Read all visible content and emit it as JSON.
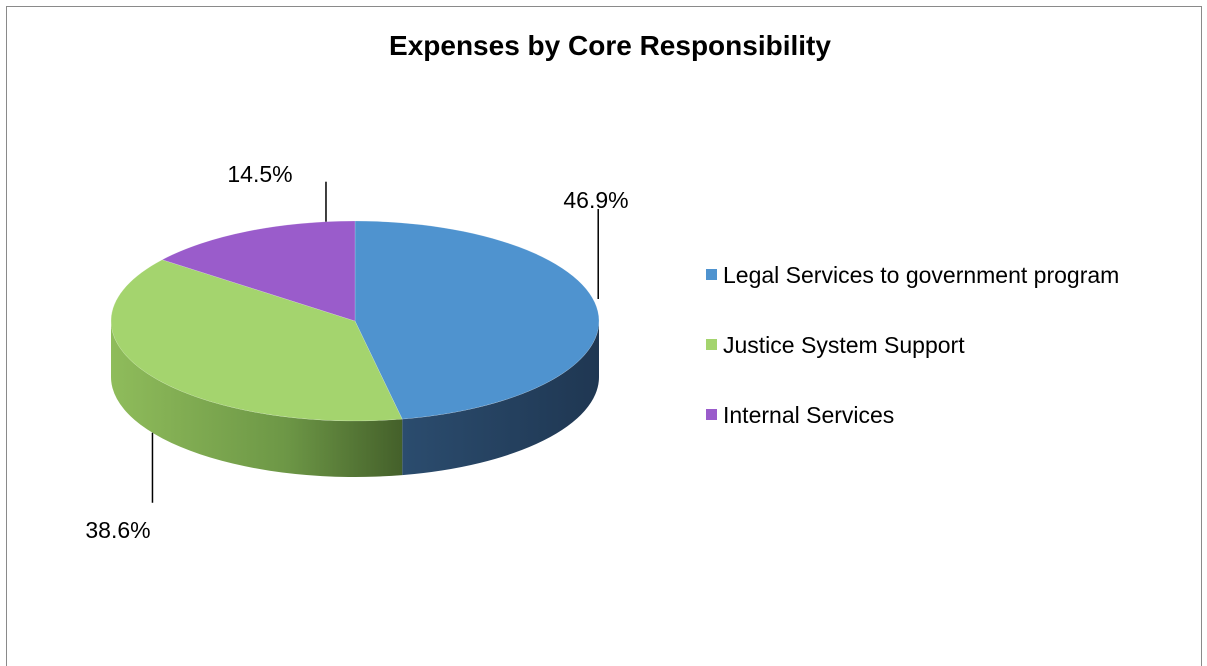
{
  "chart_data": {
    "type": "pie",
    "title": "Expenses by Core Responsibility",
    "three_d": true,
    "legend_position": "right",
    "series": [
      {
        "name": "Legal Services to government program",
        "value": 46.9,
        "label": "46.9%",
        "color": "#4F93CF",
        "side_color": "#2B4C6E"
      },
      {
        "name": "Justice System Support",
        "value": 38.6,
        "label": "38.6%",
        "color": "#A4D46E",
        "side_color": "#6F9A48"
      },
      {
        "name": "Internal Services",
        "value": 14.5,
        "label": "14.5%",
        "color": "#9A5CCB",
        "side_color": "#6A3E8E"
      }
    ]
  }
}
